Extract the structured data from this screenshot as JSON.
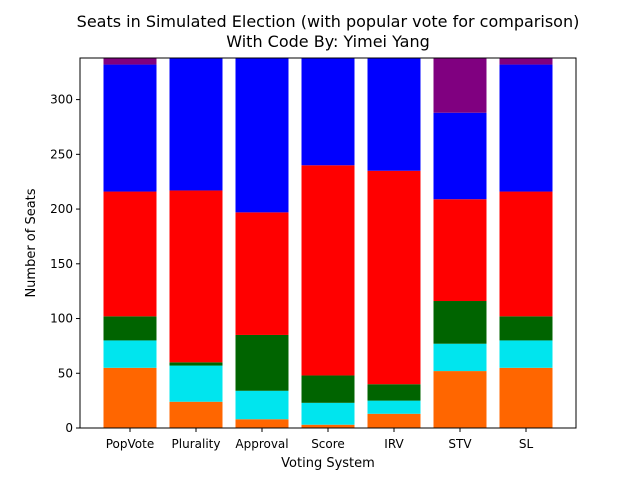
{
  "chart_data": {
    "type": "bar",
    "stacked": true,
    "title": "Seats in Simulated Election (with popular vote for comparison)",
    "subtitle": "With Code By: Yimei Yang",
    "xlabel": "Voting System",
    "ylabel": "Number of Seats",
    "ylim": [
      0,
      338
    ],
    "yticks": [
      0,
      50,
      100,
      150,
      200,
      250,
      300
    ],
    "categories": [
      "PopVote",
      "Plurality",
      "Approval",
      "Score",
      "IRV",
      "STV",
      "SL"
    ],
    "series": [
      {
        "color": "#ff6600",
        "values": [
          55,
          24,
          8,
          3,
          13,
          52,
          55
        ]
      },
      {
        "color": "#00e5ee",
        "values": [
          25,
          33,
          26,
          20,
          12,
          25,
          25
        ]
      },
      {
        "color": "#006400",
        "values": [
          22,
          3,
          51,
          25,
          15,
          39,
          22
        ]
      },
      {
        "color": "#ff0000",
        "values": [
          114,
          157,
          112,
          192,
          195,
          93,
          114
        ]
      },
      {
        "color": "#0000ff",
        "values": [
          116,
          121,
          141,
          98,
          103,
          79,
          116
        ]
      },
      {
        "color": "#800080",
        "values": [
          6,
          0,
          0,
          0,
          0,
          50,
          6
        ]
      }
    ],
    "grid": false,
    "legend": "none"
  }
}
